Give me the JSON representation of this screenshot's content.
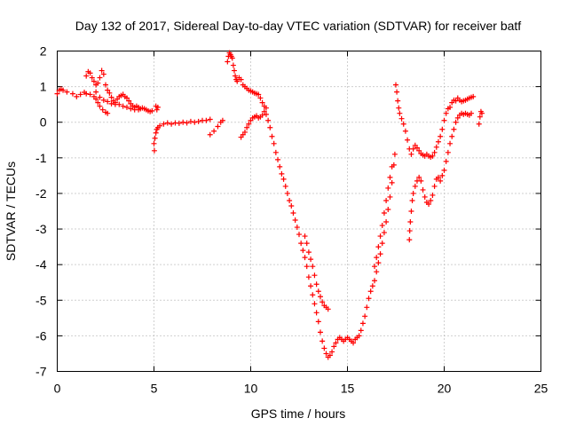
{
  "chart_data": {
    "type": "scatter",
    "title": "Day 132 of 2017, Sidereal Day-to-day VTEC variation (SDTVAR) for receiver batf",
    "xlabel": "GPS time / hours",
    "ylabel": "SDTVAR / TECUs",
    "xlim": [
      0,
      25
    ],
    "ylim": [
      -7,
      2
    ],
    "x_ticks": [
      "0",
      "5",
      "10",
      "15",
      "20",
      "25"
    ],
    "y_ticks": [
      "2",
      "1",
      "0",
      "-1",
      "-2",
      "-3",
      "-4",
      "-5",
      "-6",
      "-7"
    ],
    "grid": true,
    "marker": "+",
    "color": "#ff0000",
    "series": [
      {
        "name": "",
        "points": [
          [
            0.0,
            0.8
          ],
          [
            0.1,
            0.9
          ],
          [
            0.2,
            0.93
          ],
          [
            0.3,
            0.9
          ],
          [
            0.5,
            0.85
          ],
          [
            0.8,
            0.8
          ],
          [
            1.0,
            0.72
          ],
          [
            1.2,
            0.78
          ],
          [
            1.4,
            0.84
          ],
          [
            1.5,
            0.8
          ],
          [
            1.7,
            0.78
          ],
          [
            1.9,
            0.72
          ],
          [
            2.0,
            0.65
          ],
          [
            2.1,
            0.55
          ],
          [
            2.2,
            0.45
          ],
          [
            2.35,
            0.35
          ],
          [
            2.5,
            0.28
          ],
          [
            2.6,
            0.25
          ],
          [
            1.5,
            1.3
          ],
          [
            1.6,
            1.42
          ],
          [
            1.7,
            1.38
          ],
          [
            1.8,
            1.25
          ],
          [
            1.9,
            1.15
          ],
          [
            2.0,
            1.05
          ],
          [
            2.1,
            1.1
          ],
          [
            2.2,
            1.25
          ],
          [
            2.3,
            1.45
          ],
          [
            2.4,
            1.35
          ],
          [
            2.5,
            1.05
          ],
          [
            2.6,
            0.9
          ],
          [
            2.7,
            0.82
          ],
          [
            2.8,
            0.7
          ],
          [
            2.9,
            0.6
          ],
          [
            3.0,
            0.55
          ],
          [
            3.1,
            0.65
          ],
          [
            3.2,
            0.72
          ],
          [
            3.3,
            0.75
          ],
          [
            3.4,
            0.78
          ],
          [
            3.5,
            0.72
          ],
          [
            3.6,
            0.68
          ],
          [
            3.7,
            0.6
          ],
          [
            3.8,
            0.52
          ],
          [
            3.9,
            0.46
          ],
          [
            4.0,
            0.42
          ],
          [
            4.1,
            0.45
          ],
          [
            4.2,
            0.42
          ],
          [
            4.3,
            0.38
          ],
          [
            4.4,
            0.4
          ],
          [
            4.5,
            0.38
          ],
          [
            4.6,
            0.35
          ],
          [
            4.7,
            0.32
          ],
          [
            4.8,
            0.3
          ],
          [
            4.9,
            0.32
          ],
          [
            2.0,
            0.85
          ],
          [
            2.2,
            0.7
          ],
          [
            2.4,
            0.62
          ],
          [
            2.6,
            0.58
          ],
          [
            2.8,
            0.52
          ],
          [
            3.0,
            0.5
          ],
          [
            3.2,
            0.5
          ],
          [
            3.4,
            0.45
          ],
          [
            3.6,
            0.42
          ],
          [
            3.8,
            0.38
          ],
          [
            4.0,
            0.35
          ],
          [
            4.2,
            0.35
          ],
          [
            5.0,
            -0.6
          ],
          [
            5.02,
            -0.8
          ],
          [
            5.05,
            -0.45
          ],
          [
            5.1,
            -0.3
          ],
          [
            5.15,
            -0.2
          ],
          [
            5.2,
            -0.15
          ],
          [
            5.1,
            0.45
          ],
          [
            5.15,
            0.35
          ],
          [
            5.2,
            0.42
          ],
          [
            5.3,
            -0.1
          ],
          [
            5.5,
            -0.05
          ],
          [
            5.7,
            -0.02
          ],
          [
            5.9,
            -0.05
          ],
          [
            6.1,
            -0.02
          ],
          [
            6.3,
            -0.03
          ],
          [
            6.5,
            0.0
          ],
          [
            6.7,
            -0.02
          ],
          [
            6.9,
            0.02
          ],
          [
            7.1,
            0.0
          ],
          [
            7.3,
            0.02
          ],
          [
            7.5,
            0.05
          ],
          [
            7.7,
            0.05
          ],
          [
            7.9,
            0.08
          ],
          [
            7.9,
            -0.35
          ],
          [
            8.1,
            -0.25
          ],
          [
            8.3,
            -0.12
          ],
          [
            8.45,
            0.0
          ],
          [
            8.55,
            0.05
          ],
          [
            8.8,
            1.7
          ],
          [
            8.85,
            1.85
          ],
          [
            8.9,
            1.95
          ],
          [
            8.95,
            1.9
          ],
          [
            9.0,
            1.85
          ],
          [
            9.05,
            1.8
          ],
          [
            9.1,
            1.6
          ],
          [
            9.15,
            1.45
          ],
          [
            9.2,
            1.3
          ],
          [
            9.25,
            1.2
          ],
          [
            9.3,
            1.15
          ],
          [
            9.4,
            1.25
          ],
          [
            9.5,
            1.2
          ],
          [
            9.6,
            1.05
          ],
          [
            9.7,
            1.0
          ],
          [
            9.8,
            0.95
          ],
          [
            9.9,
            0.9
          ],
          [
            10.0,
            0.88
          ],
          [
            10.1,
            0.85
          ],
          [
            10.2,
            0.82
          ],
          [
            10.3,
            0.8
          ],
          [
            10.4,
            0.78
          ],
          [
            10.5,
            0.68
          ],
          [
            10.6,
            0.55
          ],
          [
            10.7,
            0.45
          ],
          [
            10.8,
            0.4
          ],
          [
            9.5,
            -0.42
          ],
          [
            9.6,
            -0.35
          ],
          [
            9.7,
            -0.28
          ],
          [
            9.8,
            -0.15
          ],
          [
            9.9,
            -0.05
          ],
          [
            10.0,
            0.05
          ],
          [
            10.1,
            0.12
          ],
          [
            10.2,
            0.15
          ],
          [
            10.3,
            0.18
          ],
          [
            10.4,
            0.12
          ],
          [
            10.5,
            0.15
          ],
          [
            10.6,
            0.2
          ],
          [
            10.7,
            0.3
          ],
          [
            10.8,
            0.22
          ],
          [
            10.9,
            0.05
          ],
          [
            11.0,
            -0.15
          ],
          [
            11.1,
            -0.4
          ],
          [
            11.2,
            -0.6
          ],
          [
            11.3,
            -0.85
          ],
          [
            11.4,
            -1.05
          ],
          [
            11.5,
            -1.25
          ],
          [
            11.6,
            -1.45
          ],
          [
            11.7,
            -1.6
          ],
          [
            11.8,
            -1.8
          ],
          [
            11.9,
            -2.0
          ],
          [
            12.0,
            -2.2
          ],
          [
            12.1,
            -2.35
          ],
          [
            12.2,
            -2.55
          ],
          [
            12.3,
            -2.75
          ],
          [
            12.4,
            -2.95
          ],
          [
            12.5,
            -3.15
          ],
          [
            12.6,
            -3.4
          ],
          [
            12.7,
            -3.6
          ],
          [
            12.8,
            -3.8
          ],
          [
            12.9,
            -4.05
          ],
          [
            13.0,
            -4.35
          ],
          [
            13.1,
            -4.6
          ],
          [
            13.2,
            -4.85
          ],
          [
            13.3,
            -5.1
          ],
          [
            13.4,
            -5.35
          ],
          [
            13.5,
            -5.6
          ],
          [
            13.6,
            -5.9
          ],
          [
            13.7,
            -6.15
          ],
          [
            13.8,
            -6.35
          ],
          [
            13.9,
            -6.5
          ],
          [
            14.0,
            -6.6
          ],
          [
            14.1,
            -6.55
          ],
          [
            14.2,
            -6.45
          ],
          [
            14.3,
            -6.3
          ],
          [
            14.4,
            -6.2
          ],
          [
            12.8,
            -3.2
          ],
          [
            12.9,
            -3.4
          ],
          [
            13.0,
            -3.65
          ],
          [
            13.1,
            -3.85
          ],
          [
            13.2,
            -4.05
          ],
          [
            13.3,
            -4.3
          ],
          [
            13.4,
            -4.55
          ],
          [
            13.5,
            -4.75
          ],
          [
            13.6,
            -4.9
          ],
          [
            13.7,
            -5.05
          ],
          [
            13.8,
            -5.15
          ],
          [
            13.9,
            -5.2
          ],
          [
            14.0,
            -5.25
          ],
          [
            14.5,
            -6.1
          ],
          [
            14.6,
            -6.05
          ],
          [
            14.7,
            -6.1
          ],
          [
            14.8,
            -6.15
          ],
          [
            14.9,
            -6.1
          ],
          [
            15.0,
            -6.05
          ],
          [
            15.1,
            -6.1
          ],
          [
            15.2,
            -6.15
          ],
          [
            15.3,
            -6.2
          ],
          [
            15.4,
            -6.1
          ],
          [
            15.5,
            -6.05
          ],
          [
            15.6,
            -6.0
          ],
          [
            15.7,
            -5.85
          ],
          [
            15.8,
            -5.65
          ],
          [
            15.9,
            -5.45
          ],
          [
            16.0,
            -5.2
          ],
          [
            16.1,
            -4.95
          ],
          [
            16.2,
            -4.75
          ],
          [
            16.3,
            -4.6
          ],
          [
            16.4,
            -4.45
          ],
          [
            16.5,
            -4.2
          ],
          [
            16.6,
            -3.95
          ],
          [
            16.7,
            -3.7
          ],
          [
            16.8,
            -3.4
          ],
          [
            16.9,
            -3.1
          ],
          [
            17.0,
            -2.8
          ],
          [
            17.1,
            -2.45
          ],
          [
            17.2,
            -2.1
          ],
          [
            17.3,
            -1.7
          ],
          [
            17.4,
            -1.2
          ],
          [
            17.45,
            -0.9
          ],
          [
            16.4,
            -4.05
          ],
          [
            16.5,
            -3.8
          ],
          [
            16.6,
            -3.5
          ],
          [
            16.7,
            -3.2
          ],
          [
            16.8,
            -2.9
          ],
          [
            16.9,
            -2.55
          ],
          [
            17.0,
            -2.2
          ],
          [
            17.1,
            -1.85
          ],
          [
            17.2,
            -1.55
          ],
          [
            17.3,
            -1.25
          ],
          [
            17.5,
            1.05
          ],
          [
            17.55,
            0.85
          ],
          [
            17.6,
            0.6
          ],
          [
            17.65,
            0.4
          ],
          [
            17.7,
            0.25
          ],
          [
            17.8,
            0.1
          ],
          [
            17.9,
            -0.05
          ],
          [
            18.0,
            -0.25
          ],
          [
            18.1,
            -0.5
          ],
          [
            18.2,
            -0.75
          ],
          [
            18.3,
            -0.9
          ],
          [
            18.4,
            -0.75
          ],
          [
            18.5,
            -0.65
          ],
          [
            18.6,
            -0.72
          ],
          [
            18.7,
            -0.8
          ],
          [
            18.8,
            -0.88
          ],
          [
            18.9,
            -0.92
          ],
          [
            19.0,
            -0.95
          ],
          [
            19.1,
            -0.9
          ],
          [
            19.2,
            -0.95
          ],
          [
            19.3,
            -0.98
          ],
          [
            19.4,
            -0.95
          ],
          [
            19.5,
            -0.85
          ],
          [
            19.6,
            -0.7
          ],
          [
            19.7,
            -0.55
          ],
          [
            19.8,
            -0.4
          ],
          [
            19.9,
            -0.2
          ],
          [
            20.0,
            0.05
          ],
          [
            20.1,
            0.25
          ],
          [
            20.2,
            0.38
          ],
          [
            20.3,
            0.42
          ],
          [
            20.4,
            0.55
          ],
          [
            20.5,
            0.62
          ],
          [
            20.6,
            0.6
          ],
          [
            20.7,
            0.68
          ],
          [
            20.8,
            0.62
          ],
          [
            20.9,
            0.58
          ],
          [
            21.0,
            0.6
          ],
          [
            21.1,
            0.62
          ],
          [
            21.2,
            0.65
          ],
          [
            21.3,
            0.68
          ],
          [
            21.4,
            0.7
          ],
          [
            21.5,
            0.72
          ],
          [
            18.2,
            -3.3
          ],
          [
            18.22,
            -3.05
          ],
          [
            18.25,
            -2.8
          ],
          [
            18.3,
            -2.5
          ],
          [
            18.35,
            -2.2
          ],
          [
            18.4,
            -2.0
          ],
          [
            18.5,
            -1.8
          ],
          [
            18.6,
            -1.65
          ],
          [
            18.7,
            -1.55
          ],
          [
            18.8,
            -1.65
          ],
          [
            18.9,
            -1.9
          ],
          [
            19.0,
            -2.1
          ],
          [
            19.1,
            -2.25
          ],
          [
            19.2,
            -2.3
          ],
          [
            19.3,
            -2.2
          ],
          [
            19.4,
            -2.05
          ],
          [
            19.5,
            -1.8
          ],
          [
            19.6,
            -1.6
          ],
          [
            19.7,
            -1.55
          ],
          [
            19.8,
            -1.65
          ],
          [
            19.9,
            -1.5
          ],
          [
            20.0,
            -1.35
          ],
          [
            20.1,
            -1.1
          ],
          [
            20.2,
            -0.85
          ],
          [
            20.3,
            -0.6
          ],
          [
            20.4,
            -0.4
          ],
          [
            20.5,
            -0.2
          ],
          [
            20.6,
            0.0
          ],
          [
            20.7,
            0.12
          ],
          [
            20.8,
            0.2
          ],
          [
            20.9,
            0.25
          ],
          [
            21.0,
            0.22
          ],
          [
            21.1,
            0.25
          ],
          [
            21.2,
            0.22
          ],
          [
            21.3,
            0.2
          ],
          [
            21.4,
            0.25
          ],
          [
            21.8,
            -0.05
          ],
          [
            21.85,
            0.15
          ],
          [
            21.9,
            0.3
          ],
          [
            21.95,
            0.25
          ]
        ]
      }
    ]
  }
}
